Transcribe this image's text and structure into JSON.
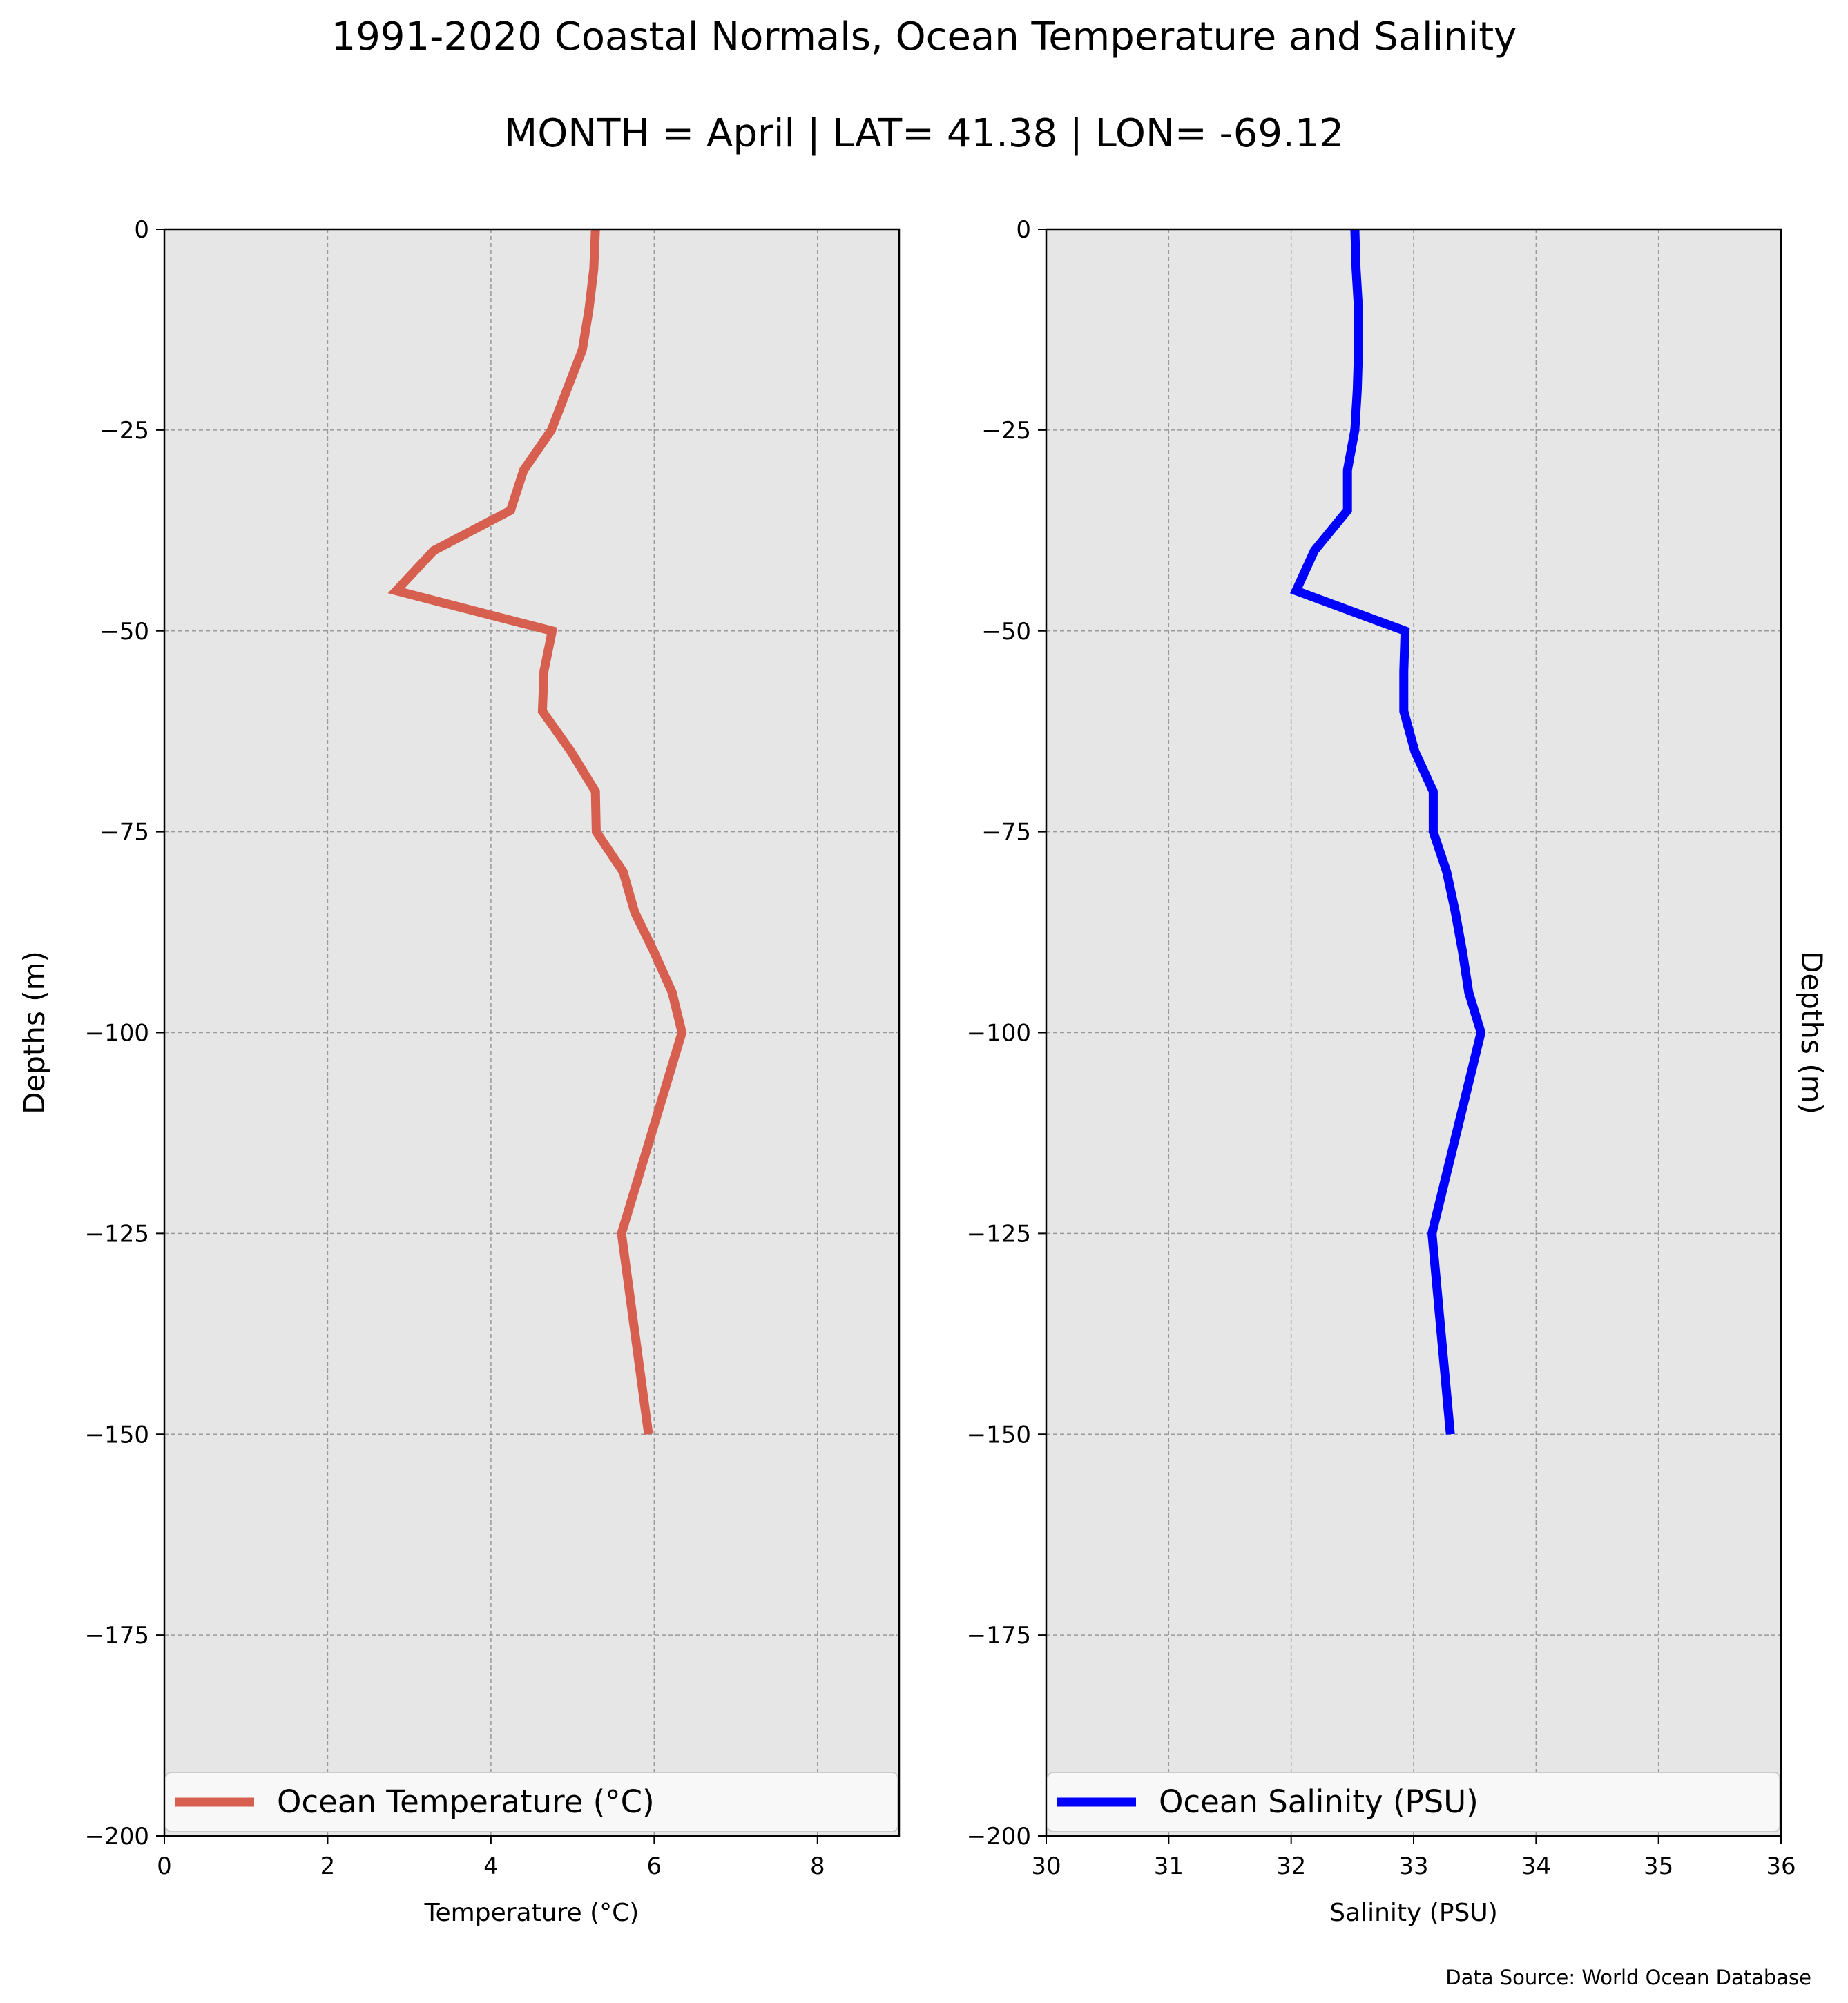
{
  "title": "1991-2020 Coastal Normals, Ocean Temperature and Salinity",
  "subtitle": "MONTH = April | LAT= 41.38 | LON= -69.12",
  "footer": "Data Source: World Ocean Database",
  "colors": {
    "temperature": "#d65f4f",
    "salinity": "#0000ff",
    "plot_bg": "#e6e6e6",
    "grid": "#9a9a9a"
  },
  "chart_data": [
    {
      "type": "line",
      "xlabel": "Temperature ($^\\circ$C)",
      "xlabel_text": "Temperature (°C)",
      "ylabel": "Depths (m)",
      "xlim": [
        0,
        9
      ],
      "ylim": [
        -200,
        0
      ],
      "xticks": [
        0,
        2,
        4,
        6,
        8
      ],
      "yticks": [
        0,
        -25,
        -50,
        -75,
        -100,
        -125,
        -150,
        -175,
        -200
      ],
      "grid": true,
      "legend_placement": "bottom",
      "series": [
        {
          "name": "Ocean Temperature (°C)",
          "color": "#d65f4f",
          "depths": [
            0,
            -5,
            -10,
            -15,
            -20,
            -25,
            -30,
            -35,
            -40,
            -45,
            -50,
            -55,
            -60,
            -65,
            -70,
            -75,
            -80,
            -85,
            -90,
            -95,
            -100,
            -125,
            -150
          ],
          "values": [
            5.28,
            5.26,
            5.2,
            5.12,
            4.93,
            4.74,
            4.4,
            4.24,
            3.3,
            2.84,
            4.75,
            4.65,
            4.63,
            4.98,
            5.28,
            5.29,
            5.62,
            5.76,
            6.0,
            6.22,
            6.34,
            5.6,
            5.93
          ]
        }
      ]
    },
    {
      "type": "line",
      "xlabel": "Salinity (PSU)",
      "ylabel": "Depths (m)",
      "ylabel_side": "right",
      "xlim": [
        30,
        36
      ],
      "ylim": [
        -200,
        0
      ],
      "xticks": [
        30,
        31,
        32,
        33,
        34,
        35,
        36
      ],
      "yticks": [
        0,
        -25,
        -50,
        -75,
        -100,
        -125,
        -150,
        -175,
        -200
      ],
      "grid": true,
      "legend_placement": "bottom",
      "series": [
        {
          "name": "Ocean Salinity (PSU)",
          "color": "#0000ff",
          "depths": [
            0,
            -5,
            -10,
            -15,
            -20,
            -25,
            -30,
            -35,
            -40,
            -45,
            -50,
            -55,
            -60,
            -65,
            -70,
            -75,
            -80,
            -85,
            -90,
            -95,
            -100,
            -125,
            -150
          ],
          "values": [
            32.52,
            32.53,
            32.55,
            32.55,
            32.54,
            32.52,
            32.46,
            32.46,
            32.19,
            32.04,
            32.93,
            32.92,
            32.92,
            33.01,
            33.16,
            33.16,
            33.27,
            33.34,
            33.4,
            33.45,
            33.55,
            33.15,
            33.3
          ]
        }
      ]
    }
  ]
}
